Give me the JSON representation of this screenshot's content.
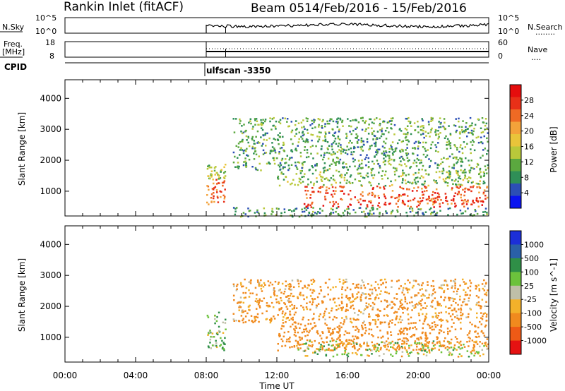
{
  "header": {
    "station": "Rankin Inlet (fitACF)",
    "beam": "Beam 05",
    "date_range": "14/Feb/2016 - 15/Feb/2016"
  },
  "noise_panel": {
    "left_label": "N.Sky",
    "left_ticks": [
      "10^5",
      "10^0"
    ],
    "right_ticks": [
      "10^5",
      "10^0"
    ],
    "right_label": "N.Search",
    "right_marker": "........",
    "trace_color": "#000000"
  },
  "freq_panel": {
    "left_label_line1": "Freq.",
    "left_label_line2": "[MHz]",
    "left_ticks": [
      "18",
      "8"
    ],
    "right_ticks": [
      "60",
      "0"
    ],
    "right_label": "Nave",
    "right_marker": "....",
    "trace_color": "#000000"
  },
  "cpid": {
    "label": "CPID",
    "program": "ulfscan -3350"
  },
  "chart_data": [
    {
      "type": "heatmap",
      "name": "power",
      "ylabel": "Slant Range [km]",
      "ylim": [
        200,
        4600
      ],
      "yticks": [
        "1000",
        "2000",
        "3000",
        "4000"
      ],
      "xlabel": "",
      "xlim": [
        "00:00",
        "24:00"
      ],
      "data_start": "08:00",
      "colorbar": {
        "label": "Power [dB]",
        "range": [
          0,
          32
        ],
        "ticks": [
          "4",
          "8",
          "12",
          "16",
          "20",
          "24",
          "28"
        ],
        "colors": [
          "#0a14f0",
          "#2c4fb5",
          "#2f8f57",
          "#5ba83f",
          "#b9c83a",
          "#e9c43a",
          "#f3a23a",
          "#ef6a24",
          "#e83018",
          "#e50d0d"
        ]
      },
      "rows": [
        {
          "range_km": [
            600,
            1400
          ],
          "start": "08:00",
          "end": "09:05",
          "value_db": 24
        },
        {
          "range_km": [
            1400,
            1900
          ],
          "start": "08:00",
          "end": "09:05",
          "value_db": 14
        },
        {
          "range_km": [
            500,
            1200
          ],
          "start": "13:30",
          "end": "23:55",
          "value_db": 26
        },
        {
          "range_km": [
            1200,
            1700
          ],
          "start": "12:00",
          "end": "23:55",
          "value_db": 12
        },
        {
          "range_km": [
            1700,
            3400
          ],
          "start": "09:30",
          "end": "23:55",
          "value_db": 10
        },
        {
          "range_km": [
            200,
            500
          ],
          "start": "09:30",
          "end": "23:55",
          "value_db": 9
        }
      ]
    },
    {
      "type": "heatmap",
      "name": "velocity",
      "ylabel": "Slant Range [km]",
      "ylim": [
        200,
        4600
      ],
      "yticks": [
        "1000",
        "2000",
        "3000",
        "4000"
      ],
      "xlabel": "Time UT",
      "xlim": [
        "00:00",
        "24:00"
      ],
      "xticks": [
        "00:00",
        "04:00",
        "08:00",
        "12:00",
        "16:00",
        "20:00",
        "00:00"
      ],
      "data_start": "08:00",
      "colorbar": {
        "label": "Velocity [m s^-1]",
        "ticks": [
          "1000",
          "500",
          "100",
          "25",
          "-25",
          "-100",
          "-500",
          "-1000"
        ],
        "colors": [
          "#1c2fd8",
          "#2a60a8",
          "#2f8f47",
          "#6cc23c",
          "#bfbfa8",
          "#f3b12a",
          "#f08a1e",
          "#ee5a16",
          "#e51212"
        ]
      },
      "rows": [
        {
          "range_km": [
            600,
            1900
          ],
          "start": "08:00",
          "end": "09:05",
          "value_ms": 60
        },
        {
          "range_km": [
            600,
            1500
          ],
          "start": "12:00",
          "end": "23:55",
          "value_ms": -300
        },
        {
          "range_km": [
            1500,
            2900
          ],
          "start": "09:30",
          "end": "23:55",
          "value_ms": -150
        },
        {
          "range_km": [
            400,
            900
          ],
          "start": "13:00",
          "end": "23:55",
          "value_ms": -10
        }
      ]
    }
  ]
}
